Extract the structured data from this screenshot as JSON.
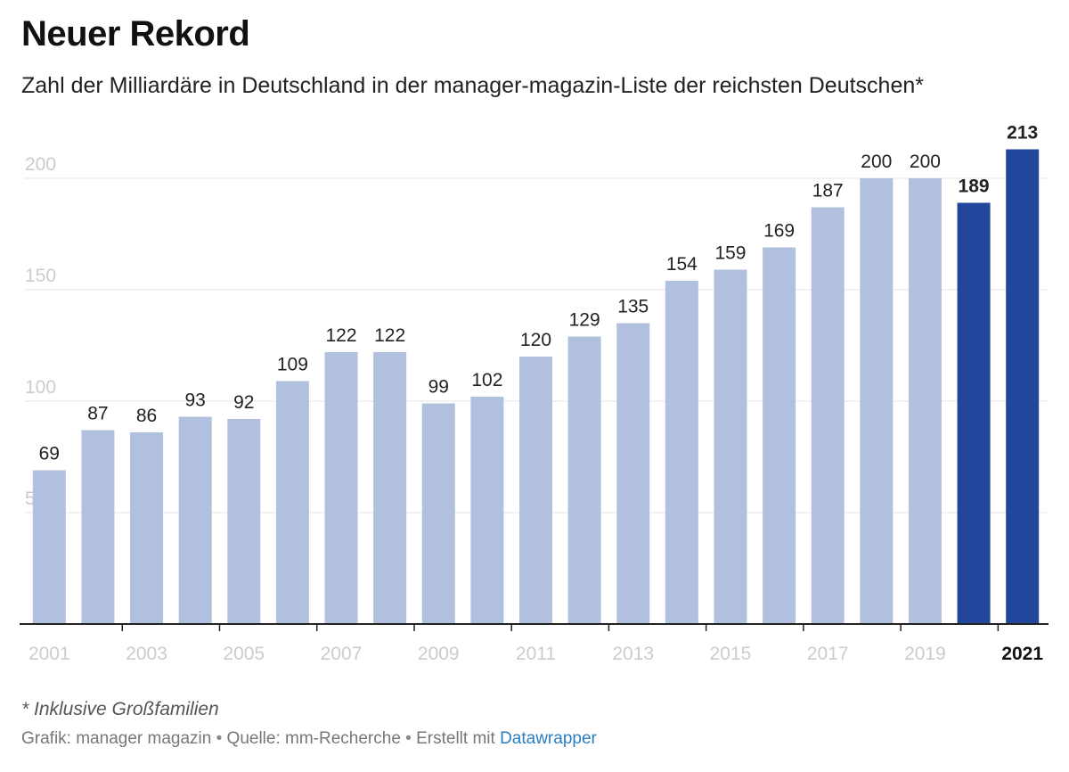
{
  "header": {
    "title": "Neuer Rekord",
    "subtitle": "Zahl der Milliardäre in Deutschland in der manager-magazin-Liste der reichsten Deutschen*"
  },
  "chart_data": {
    "type": "bar",
    "categories": [
      "2001",
      "2002",
      "2003",
      "2004",
      "2005",
      "2006",
      "2007",
      "2008",
      "2009",
      "2010",
      "2011",
      "2012",
      "2013",
      "2014",
      "2015",
      "2016",
      "2017",
      "2018",
      "2019",
      "2020",
      "2021"
    ],
    "values": [
      69,
      87,
      86,
      93,
      92,
      109,
      122,
      122,
      99,
      102,
      120,
      129,
      135,
      154,
      159,
      169,
      187,
      200,
      200,
      189,
      213
    ],
    "highlighted_categories": [
      "2020",
      "2021"
    ],
    "x_tick_labels": [
      "2001",
      "2003",
      "2005",
      "2007",
      "2009",
      "2011",
      "2013",
      "2015",
      "2017",
      "2019",
      "2021"
    ],
    "y_ticks": [
      50,
      100,
      150,
      200
    ],
    "ylim": [
      0,
      220
    ],
    "grid": true,
    "legend": "none",
    "colors": {
      "bar": "#b1c0de",
      "bar_highlight": "#22469b",
      "gridline": "#e6e6e6",
      "axis_tick_label": "#cccccc",
      "value_label": "#222222"
    }
  },
  "footer": {
    "note": "* Inklusive Großfamilien",
    "credit_prefix": "Grafik: manager magazin",
    "separator": "•",
    "source": "Quelle: mm-Recherche",
    "made_with": "Erstellt mit",
    "tool_link": "Datawrapper"
  }
}
